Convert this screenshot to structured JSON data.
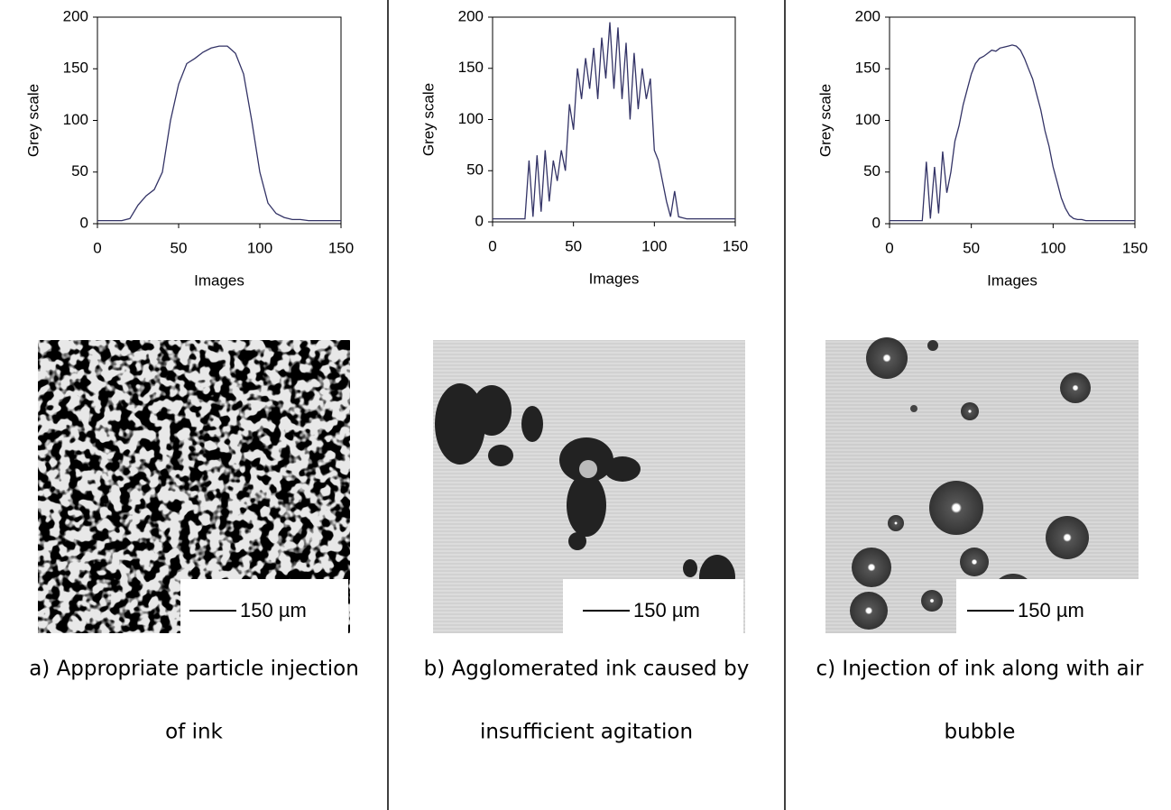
{
  "chart_data": [
    {
      "type": "line",
      "xlabel": "Images",
      "ylabel": "Grey scale",
      "color": "#333366",
      "x": [
        0,
        5,
        10,
        15,
        20,
        25,
        30,
        35,
        40,
        45,
        50,
        55,
        60,
        65,
        70,
        75,
        80,
        85,
        90,
        95,
        100,
        105,
        110,
        115,
        120,
        125,
        130,
        135,
        140,
        145,
        150
      ],
      "values": [
        3,
        3,
        3,
        3,
        5,
        18,
        27,
        33,
        50,
        100,
        135,
        155,
        160,
        166,
        170,
        172,
        172,
        165,
        145,
        100,
        50,
        20,
        10,
        6,
        4,
        4,
        3,
        3,
        3,
        3,
        3
      ],
      "xlim": [
        0,
        150
      ],
      "ylim": [
        0,
        200
      ],
      "xticks": [
        0,
        50,
        100,
        150
      ],
      "yticks": [
        0,
        50,
        100,
        150,
        200
      ]
    },
    {
      "type": "line",
      "xlabel": "Images",
      "ylabel": "Grey scale",
      "color": "#333366",
      "x": [
        0,
        2.5,
        5,
        7.5,
        10,
        12.5,
        15,
        17.5,
        20,
        22.5,
        25,
        27.5,
        30,
        32.5,
        35,
        37.5,
        40,
        42.5,
        45,
        47.5,
        50,
        52.5,
        55,
        57.5,
        60,
        62.5,
        65,
        67.5,
        70,
        72.5,
        75,
        77.5,
        80,
        82.5,
        85,
        87.5,
        90,
        92.5,
        95,
        97.5,
        100,
        102.5,
        105,
        107.5,
        110,
        112.5,
        115,
        117.5,
        120,
        122.5,
        125,
        127.5,
        130,
        132.5,
        135,
        137.5,
        140,
        142.5,
        145,
        147.5,
        150
      ],
      "values": [
        3,
        3,
        3,
        3,
        3,
        3,
        3,
        3,
        3,
        60,
        5,
        65,
        10,
        70,
        20,
        60,
        40,
        70,
        50,
        115,
        90,
        150,
        120,
        160,
        130,
        170,
        120,
        180,
        140,
        195,
        130,
        190,
        120,
        175,
        100,
        165,
        110,
        150,
        120,
        140,
        70,
        60,
        40,
        20,
        5,
        30,
        5,
        4,
        3,
        3,
        3,
        3,
        3,
        3,
        3,
        3,
        3,
        3,
        3,
        3,
        3
      ],
      "xlim": [
        0,
        150
      ],
      "ylim": [
        0,
        200
      ],
      "xticks": [
        0,
        50,
        100,
        150
      ],
      "yticks": [
        0,
        50,
        100,
        150,
        200
      ]
    },
    {
      "type": "line",
      "xlabel": "Images",
      "ylabel": "Grey scale",
      "color": "#333366",
      "x": [
        0,
        2.5,
        5,
        7.5,
        10,
        12.5,
        15,
        17.5,
        20,
        22.5,
        25,
        27.5,
        30,
        32.5,
        35,
        37.5,
        40,
        42.5,
        45,
        47.5,
        50,
        52.5,
        55,
        57.5,
        60,
        62.5,
        65,
        67.5,
        70,
        72.5,
        75,
        77.5,
        80,
        82.5,
        85,
        87.5,
        90,
        92.5,
        95,
        97.5,
        100,
        102.5,
        105,
        107.5,
        110,
        112.5,
        115,
        117.5,
        120,
        122.5,
        125,
        127.5,
        130,
        132.5,
        135,
        137.5,
        140,
        142.5,
        145,
        147.5,
        150
      ],
      "values": [
        3,
        3,
        3,
        3,
        3,
        3,
        3,
        3,
        3,
        60,
        5,
        55,
        10,
        70,
        30,
        50,
        80,
        95,
        115,
        130,
        145,
        155,
        160,
        162,
        165,
        168,
        167,
        170,
        171,
        172,
        173,
        172,
        168,
        160,
        150,
        140,
        125,
        110,
        90,
        75,
        55,
        40,
        25,
        15,
        8,
        5,
        4,
        4,
        3,
        3,
        3,
        3,
        3,
        3,
        3,
        3,
        3,
        3,
        3,
        3,
        3
      ],
      "xlim": [
        0,
        150
      ],
      "ylim": [
        0,
        200
      ],
      "xticks": [
        0,
        50,
        100,
        150
      ],
      "yticks": [
        0,
        50,
        100,
        150,
        200
      ]
    }
  ],
  "panels": [
    {
      "scale_bar": "150 µm",
      "caption": [
        "a) Appropriate particle injection",
        "of ink"
      ]
    },
    {
      "scale_bar": "150 µm",
      "caption": [
        "b) Agglomerated ink caused by",
        "insufficient agitation"
      ]
    },
    {
      "scale_bar": "150 µm",
      "caption": [
        "c) Injection of ink along with air",
        "bubble"
      ]
    }
  ]
}
